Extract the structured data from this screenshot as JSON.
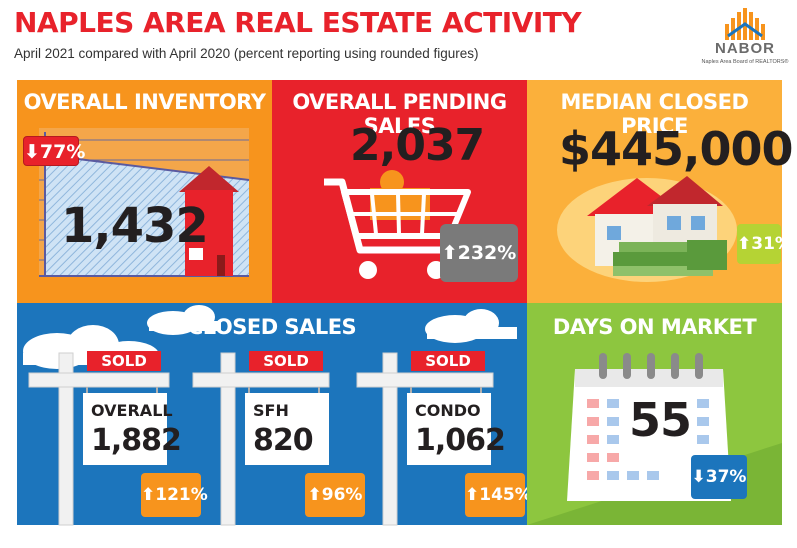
{
  "header": {
    "title": "NAPLES AREA REAL ESTATE ACTIVITY",
    "subtitle": "April 2021 compared with April 2020 (percent reporting using rounded figures)"
  },
  "logo": {
    "name": "NABOR",
    "tagline": "Naples Area Board of REALTORS®"
  },
  "overall_inventory": {
    "title": "OVERALL INVENTORY",
    "value": "1,432",
    "change": "77%",
    "direction": "down"
  },
  "pending_sales": {
    "title": "OVERALL PENDING SALES",
    "value": "2,037",
    "change": "232%",
    "direction": "up"
  },
  "median_price": {
    "title": "MEDIAN CLOSED PRICE",
    "value": "$445,000",
    "change": "31%",
    "direction": "up"
  },
  "closed_sales": {
    "title": "CLOSED SALES",
    "sold_label": "SOLD",
    "signs": [
      {
        "label": "OVERALL",
        "value": "1,882",
        "change": "121%",
        "direction": "up"
      },
      {
        "label": "SFH",
        "value": "820",
        "change": "96%",
        "direction": "up"
      },
      {
        "label": "CONDO",
        "value": "1,062",
        "change": "145%",
        "direction": "up"
      }
    ]
  },
  "days_on_market": {
    "title": "DAYS ON MARKET",
    "value": "55",
    "change": "37%",
    "direction": "down"
  },
  "colors": {
    "red": "#e8222b",
    "orange": "#f7941d",
    "gold": "#fbb03b",
    "blue": "#1c75bc",
    "green": "#8dc63f",
    "badge_green": "#b5d334",
    "badge_gray": "#7a7a7a"
  }
}
